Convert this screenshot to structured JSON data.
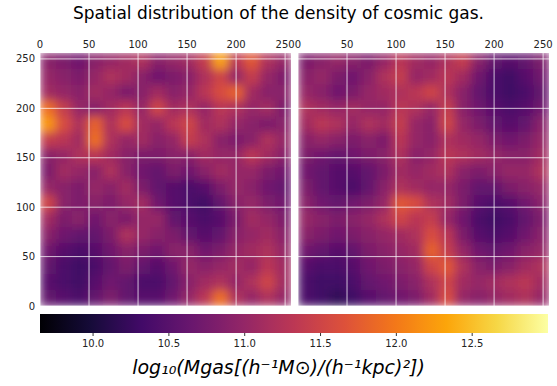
{
  "chart_data": {
    "type": "heatmap",
    "title": "Spatial distribution of the density of cosmic gas.",
    "xlim": [
      0,
      256
    ],
    "ylim": [
      0,
      256
    ],
    "xticks": [
      0,
      50,
      100,
      150,
      200,
      250
    ],
    "yticks": [
      0,
      50,
      100,
      150,
      200,
      250
    ],
    "grid": true,
    "x_bins": [
      0,
      16,
      32,
      48,
      64,
      80,
      96,
      112,
      128,
      144,
      160,
      176,
      192,
      208,
      224,
      240,
      256
    ],
    "y_bins": [
      256,
      240,
      224,
      208,
      192,
      176,
      160,
      144,
      128,
      112,
      96,
      80,
      64,
      48,
      32,
      16,
      0
    ],
    "panels": [
      {
        "tick_labels": true,
        "cells": [
          [
            10.9,
            10.8,
            10.7,
            10.9,
            11.0,
            11.1,
            11.2,
            10.9,
            11.0,
            11.1,
            11.4,
            12.3,
            11.3,
            11.7,
            11.2,
            11.0
          ],
          [
            11.0,
            10.9,
            10.8,
            11.0,
            11.2,
            11.1,
            10.9,
            10.7,
            10.8,
            10.9,
            11.2,
            11.5,
            11.0,
            11.4,
            11.0,
            10.8
          ],
          [
            11.1,
            11.0,
            10.9,
            11.1,
            11.0,
            10.8,
            10.9,
            11.1,
            10.9,
            11.0,
            11.3,
            11.6,
            11.8,
            11.1,
            10.9,
            10.9
          ],
          [
            11.9,
            11.4,
            11.0,
            10.9,
            11.1,
            11.3,
            11.0,
            11.5,
            11.1,
            11.2,
            11.0,
            11.3,
            11.2,
            11.0,
            11.1,
            10.8
          ],
          [
            12.2,
            11.6,
            11.2,
            11.8,
            11.2,
            11.6,
            11.1,
            11.0,
            11.3,
            11.5,
            11.1,
            11.2,
            11.0,
            10.9,
            10.8,
            10.9
          ],
          [
            11.4,
            11.3,
            11.1,
            11.9,
            11.2,
            11.0,
            11.1,
            10.9,
            11.0,
            11.4,
            11.2,
            10.9,
            10.8,
            10.9,
            11.2,
            11.0
          ],
          [
            10.9,
            11.0,
            11.2,
            11.3,
            11.1,
            10.9,
            10.8,
            10.8,
            10.9,
            10.9,
            11.1,
            11.0,
            11.0,
            11.3,
            11.1,
            10.9
          ],
          [
            10.8,
            11.1,
            11.0,
            10.9,
            11.2,
            10.9,
            10.7,
            10.6,
            10.8,
            10.7,
            10.9,
            11.1,
            11.0,
            11.0,
            10.8,
            10.7
          ],
          [
            11.0,
            10.9,
            10.8,
            11.0,
            10.9,
            11.1,
            10.8,
            10.6,
            10.5,
            10.4,
            10.5,
            10.8,
            11.0,
            10.9,
            10.7,
            10.6
          ],
          [
            11.5,
            10.9,
            10.8,
            10.9,
            10.8,
            11.0,
            11.1,
            10.7,
            10.5,
            10.4,
            10.3,
            10.6,
            10.9,
            11.0,
            10.8,
            10.7
          ],
          [
            11.1,
            10.8,
            10.9,
            10.7,
            10.9,
            10.8,
            11.0,
            11.0,
            10.6,
            10.5,
            10.4,
            10.5,
            10.8,
            11.1,
            11.0,
            10.8
          ],
          [
            10.9,
            10.7,
            10.6,
            10.6,
            10.8,
            11.2,
            11.0,
            10.9,
            10.8,
            10.6,
            10.5,
            10.6,
            10.9,
            11.0,
            11.1,
            10.9
          ],
          [
            10.7,
            10.5,
            10.4,
            10.5,
            10.7,
            10.9,
            10.8,
            10.7,
            10.9,
            10.9,
            10.7,
            10.8,
            11.0,
            11.1,
            11.2,
            11.0
          ],
          [
            10.6,
            10.4,
            10.3,
            10.4,
            10.6,
            10.8,
            10.6,
            10.5,
            10.7,
            11.0,
            10.9,
            11.0,
            11.1,
            11.0,
            11.3,
            11.1
          ],
          [
            10.5,
            10.4,
            10.3,
            10.5,
            10.7,
            10.6,
            10.4,
            10.4,
            10.6,
            10.9,
            11.1,
            11.2,
            11.0,
            11.2,
            11.5,
            11.1
          ],
          [
            10.6,
            10.5,
            10.4,
            10.6,
            10.8,
            10.6,
            10.5,
            10.5,
            10.7,
            11.0,
            11.3,
            11.9,
            11.2,
            11.0,
            11.2,
            11.0
          ]
        ]
      },
      {
        "tick_labels": "x",
        "cells": [
          [
            10.8,
            10.9,
            11.0,
            10.9,
            10.8,
            11.0,
            11.3,
            11.1,
            11.0,
            11.2,
            11.4,
            10.9,
            10.6,
            10.5,
            10.6,
            10.8
          ],
          [
            10.9,
            11.0,
            10.8,
            10.7,
            10.9,
            11.2,
            11.4,
            11.0,
            11.1,
            11.3,
            11.1,
            10.7,
            10.4,
            10.3,
            10.5,
            10.7
          ],
          [
            11.0,
            10.9,
            10.7,
            10.8,
            11.0,
            11.1,
            11.2,
            11.3,
            11.5,
            11.2,
            10.9,
            10.6,
            10.4,
            10.3,
            10.4,
            10.6
          ],
          [
            11.2,
            11.1,
            11.0,
            11.1,
            11.0,
            11.0,
            11.3,
            11.2,
            11.0,
            11.4,
            10.9,
            10.7,
            10.5,
            10.4,
            10.5,
            10.7
          ],
          [
            11.1,
            11.3,
            11.2,
            11.0,
            11.2,
            11.1,
            11.4,
            11.0,
            10.9,
            11.5,
            11.0,
            10.8,
            10.6,
            10.5,
            10.6,
            10.9
          ],
          [
            10.9,
            11.0,
            10.9,
            10.8,
            10.9,
            10.8,
            11.3,
            11.0,
            10.9,
            11.2,
            11.1,
            11.0,
            10.8,
            10.7,
            10.8,
            11.0
          ],
          [
            10.8,
            10.7,
            10.6,
            10.7,
            10.8,
            10.9,
            11.2,
            10.9,
            11.0,
            11.3,
            11.2,
            11.1,
            11.0,
            10.9,
            10.9,
            11.1
          ],
          [
            10.7,
            10.6,
            10.5,
            10.5,
            10.6,
            10.8,
            11.1,
            11.0,
            11.1,
            11.2,
            10.9,
            10.8,
            10.9,
            11.0,
            11.0,
            11.2
          ],
          [
            10.8,
            10.6,
            10.5,
            10.4,
            10.6,
            10.9,
            11.2,
            11.1,
            11.0,
            11.0,
            10.8,
            10.6,
            10.6,
            10.8,
            10.9,
            11.0
          ],
          [
            10.9,
            10.7,
            10.6,
            10.7,
            10.8,
            11.0,
            11.7,
            11.6,
            11.2,
            11.1,
            10.8,
            10.5,
            10.4,
            10.5,
            10.7,
            10.9
          ],
          [
            11.0,
            10.9,
            10.8,
            10.9,
            11.0,
            11.2,
            11.5,
            11.3,
            11.4,
            11.0,
            10.7,
            10.4,
            10.3,
            10.4,
            10.6,
            10.8
          ],
          [
            10.9,
            10.8,
            10.7,
            10.8,
            10.9,
            11.0,
            11.1,
            11.2,
            11.6,
            11.3,
            10.8,
            10.5,
            10.4,
            10.5,
            10.7,
            10.9
          ],
          [
            10.7,
            10.6,
            10.5,
            10.6,
            10.8,
            10.9,
            11.0,
            11.1,
            11.8,
            11.4,
            11.0,
            10.7,
            10.6,
            10.7,
            10.9,
            11.0
          ],
          [
            10.5,
            10.4,
            10.4,
            10.5,
            10.7,
            10.8,
            10.9,
            11.0,
            11.5,
            11.7,
            11.2,
            10.9,
            10.8,
            10.9,
            11.1,
            11.2
          ],
          [
            10.4,
            10.3,
            10.3,
            10.4,
            10.6,
            10.7,
            10.8,
            10.9,
            11.2,
            11.5,
            11.1,
            11.0,
            11.1,
            11.2,
            11.3,
            11.1
          ],
          [
            10.4,
            10.3,
            10.2,
            10.3,
            10.5,
            10.6,
            10.7,
            10.8,
            11.1,
            11.6,
            11.0,
            10.9,
            11.0,
            11.1,
            11.2,
            11.0
          ]
        ]
      }
    ],
    "color_range": [
      9.65,
      13.0
    ],
    "color_ticks": [
      {
        "value": 10,
        "label": "10.0"
      },
      10.5,
      {
        "value": 11,
        "label": "11.0"
      },
      11.5,
      {
        "value": 12,
        "label": "12.0"
      },
      12.5
    ],
    "color_label": "log₁₀(Mgas[(h⁻¹M⊙)/(h⁻¹kpc)²])"
  }
}
